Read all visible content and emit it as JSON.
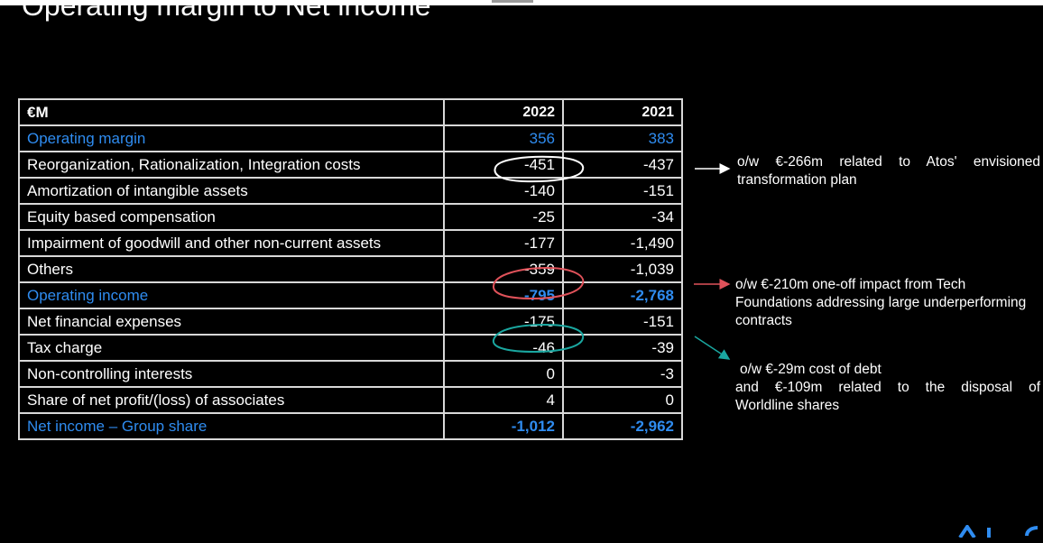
{
  "slide": {
    "title": "Operating margin to Net income"
  },
  "table": {
    "header": {
      "label": "€M",
      "col1": "2022",
      "col2": "2021"
    },
    "rows": [
      {
        "label": "Operating margin",
        "v2022": "356",
        "v2021": "383",
        "highlight": true,
        "bold": false
      },
      {
        "label": "Reorganization, Rationalization, Integration costs",
        "v2022": "-451",
        "v2021": "-437",
        "highlight": false,
        "bold": false
      },
      {
        "label": "Amortization of intangible assets",
        "v2022": "-140",
        "v2021": "-151",
        "highlight": false,
        "bold": false
      },
      {
        "label": "Equity based compensation",
        "v2022": "-25",
        "v2021": "-34",
        "highlight": false,
        "bold": false
      },
      {
        "label": "Impairment of goodwill and other non-current assets",
        "v2022": "-177",
        "v2021": "-1,490",
        "highlight": false,
        "bold": false
      },
      {
        "label": "Others",
        "v2022": "-359",
        "v2021": "-1,039",
        "highlight": false,
        "bold": false
      },
      {
        "label": "Operating income",
        "v2022": "-795",
        "v2021": "-2,768",
        "highlight": true,
        "bold": true
      },
      {
        "label": "Net financial expenses",
        "v2022": "-175",
        "v2021": "-151",
        "highlight": false,
        "bold": false
      },
      {
        "label": "Tax charge",
        "v2022": "-46",
        "v2021": "-39",
        "highlight": false,
        "bold": false
      },
      {
        "label": "Non-controlling interests",
        "v2022": "0",
        "v2021": "-3",
        "highlight": false,
        "bold": false
      },
      {
        "label": "Share of net profit/(loss) of associates",
        "v2022": "4",
        "v2021": "0",
        "highlight": false,
        "bold": false
      },
      {
        "label": "Net income – Group share",
        "v2022": "-1,012",
        "v2021": "-2,962",
        "highlight": true,
        "bold": true
      }
    ]
  },
  "annotations": {
    "reorganization": "o/w €-266m related to Atos' envisioned transformation plan",
    "others": "o/w €-210m one-off  impact from Tech Foundations addressing large underperforming contracts",
    "financial_line1": "o/w €-29m cost of debt",
    "financial_line2": "and €-109m related to the disposal of",
    "financial_line3": "Worldline shares"
  },
  "colors": {
    "highlight_text": "#2f8cf0",
    "circle_reorganization": "#ffffff",
    "circle_others": "#e0525a",
    "circle_financial": "#1aa7a0",
    "arrow_reorganization": "#ffffff",
    "arrow_others": "#e0525a",
    "arrow_financial": "#1aa7a0",
    "background": "#000000"
  }
}
